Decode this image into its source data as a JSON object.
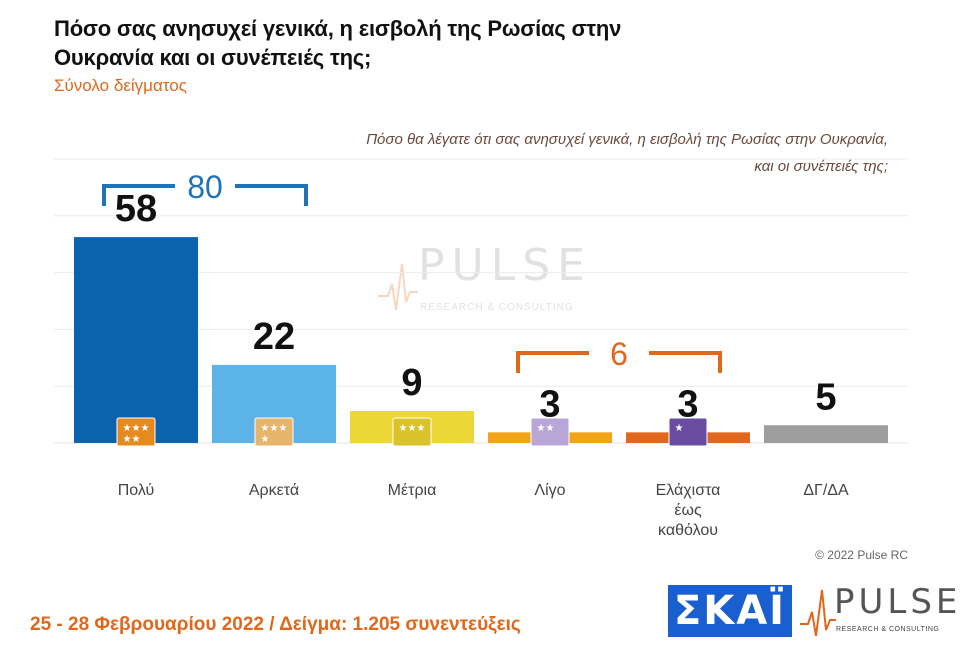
{
  "header": {
    "title": "Πόσο σας ανησυχεί γενικά, η εισβολή της Ρωσίας στην Ουκρανία και οι συνέπειές της;",
    "subtitle": "Σύνολο δείγματος",
    "question_line1": "Πόσο θα λέγατε ότι σας ανησυχεί γενικά, η εισβολή της Ρωσίας στην Ουκρανία,",
    "question_line2": "και οι συνέπειές της;"
  },
  "chart_data": {
    "type": "bar",
    "categories": [
      "Πολύ",
      "Αρκετά",
      "Μέτρια",
      "Λίγο",
      "Ελάχιστα έως καθόλου",
      "ΔΓ/ΔΑ"
    ],
    "category_lines": [
      [
        "Πολύ"
      ],
      [
        "Αρκετά"
      ],
      [
        "Μέτρια"
      ],
      [
        "Λίγο"
      ],
      [
        "Ελάχιστα",
        "έως",
        "καθόλου"
      ],
      [
        "ΔΓ/ΔΑ"
      ]
    ],
    "values": [
      58,
      22,
      9,
      3,
      3,
      5
    ],
    "colors": [
      "#0b63ad",
      "#5bb3e8",
      "#ebd735",
      "#f2a416",
      "#e0681c",
      "#9e9e9e"
    ],
    "icon_stars": [
      5,
      4,
      3,
      2,
      1,
      0
    ],
    "icon_colors": [
      "#e58a1e",
      "#e6b46b",
      "#d9c22a",
      "#b8a7d6",
      "#6a4da3",
      ""
    ],
    "groups": [
      {
        "label": "80",
        "color": "#1f74b8",
        "from": 0,
        "to": 1
      },
      {
        "label": "6",
        "color": "#e0681c",
        "from": 3,
        "to": 4
      }
    ],
    "ylim": [
      0,
      80
    ],
    "grid": true
  },
  "footer": {
    "copyright": "© 2022 Pulse RC",
    "date_sample": "25 - 28 Φεβρουαρίου 2022 / Δείγμα: 1.205 συνεντεύξεις"
  },
  "logos": {
    "skai": "ΣΚΑΪ",
    "pulse": "PULSE",
    "pulse_tag": "RESEARCH & CONSULTING",
    "watermark": "PULSE",
    "watermark_tag": "RESEARCH & CONSULTING"
  }
}
